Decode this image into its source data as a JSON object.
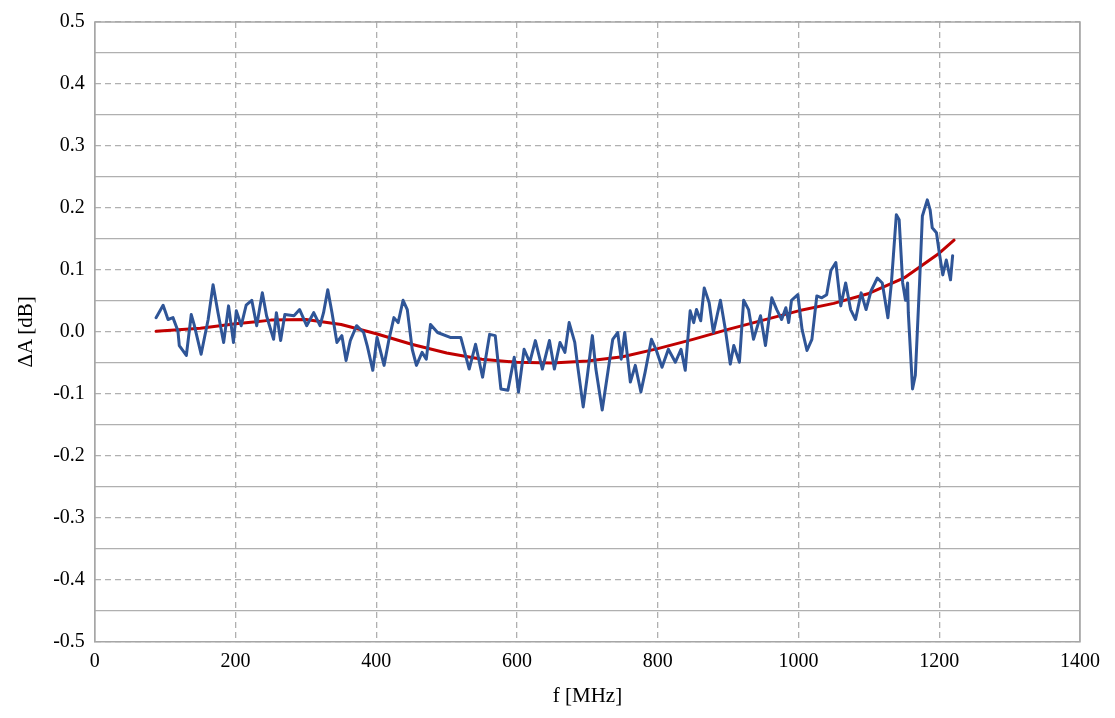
{
  "chart_data": {
    "type": "line",
    "xlabel": "f [MHz]",
    "ylabel": "ΔA [dB]",
    "xlim": [
      0,
      1400
    ],
    "xticks": [
      0,
      200,
      400,
      600,
      800,
      1000,
      1200,
      1400
    ],
    "ylim": [
      -0.5,
      0.5
    ],
    "yticks": [
      -0.5,
      {
        "value": -0.45,
        "label": null
      },
      -0.4,
      {
        "value": -0.35,
        "label": null
      },
      -0.3,
      {
        "value": -0.25,
        "label": null
      },
      -0.2,
      {
        "value": -0.15,
        "label": null
      },
      -0.1,
      {
        "value": -0.05,
        "label": null
      },
      {
        "value": 0,
        "label": "0.0"
      },
      {
        "value": 0.05,
        "label": null
      },
      0.1,
      {
        "value": 0.15,
        "label": null
      },
      0.2,
      {
        "value": 0.25,
        "label": null
      },
      0.3,
      {
        "value": 0.35,
        "label": null
      },
      0.4,
      {
        "value": 0.45,
        "label": null
      },
      0.5
    ],
    "grid": true,
    "legend": false,
    "marker": "none",
    "line_style": "solid",
    "series": [
      {
        "color": "#2f5597",
        "x": [
          87,
          97,
          104,
          111,
          118,
          120,
          130,
          137,
          141,
          151,
          161,
          168,
          175,
          183,
          190,
          197,
          201,
          208,
          215,
          223,
          230,
          238,
          244,
          254,
          258,
          264,
          270,
          283,
          291,
          301,
          311,
          320,
          325,
          331,
          337,
          344,
          351,
          357,
          363,
          372,
          382,
          387,
          395,
          401,
          411,
          418,
          425,
          431,
          438,
          444,
          451,
          457,
          465,
          471,
          477,
          487,
          505,
          520,
          532,
          541,
          551,
          561,
          569,
          577,
          587,
          596,
          602,
          610,
          618,
          626,
          636,
          646,
          653,
          661,
          668,
          674,
          682,
          686,
          694,
          700,
          707,
          712,
          721,
          729,
          736,
          743,
          748,
          753,
          761,
          768,
          776,
          782,
          791,
          798,
          806,
          815,
          825,
          833,
          839,
          846,
          851,
          855,
          861,
          866,
          873,
          879,
          889,
          896,
          903,
          908,
          916,
          922,
          929,
          936,
          946,
          953,
          962,
          969,
          976,
          982,
          986,
          990,
          999,
          1005,
          1012,
          1019,
          1026,
          1033,
          1040,
          1046,
          1053,
          1060,
          1067,
          1074,
          1081,
          1089,
          1096,
          1103,
          1112,
          1119,
          1127,
          1132,
          1139,
          1143,
          1148,
          1152,
          1155,
          1156,
          1162,
          1166,
          1172,
          1176,
          1183,
          1187,
          1190,
          1196,
          1200,
          1205,
          1210,
          1213,
          1216,
          1219
        ],
        "values": [
          0.023,
          0.043,
          0.02,
          0.023,
          0.002,
          -0.022,
          -0.038,
          0.028,
          0.012,
          -0.036,
          0.02,
          0.076,
          0.031,
          -0.017,
          0.042,
          -0.017,
          0.034,
          0.01,
          0.043,
          0.051,
          0.01,
          0.063,
          0.026,
          -0.012,
          0.031,
          -0.014,
          0.028,
          0.026,
          0.036,
          0.01,
          0.031,
          0.01,
          0.031,
          0.068,
          0.031,
          -0.017,
          -0.006,
          -0.046,
          -0.014,
          0.01,
          -0.001,
          -0.022,
          -0.062,
          -0.009,
          -0.054,
          -0.012,
          0.023,
          0.015,
          0.051,
          0.036,
          -0.028,
          -0.054,
          -0.033,
          -0.044,
          0.012,
          -0.001,
          -0.009,
          -0.009,
          -0.06,
          -0.02,
          -0.073,
          -0.004,
          -0.006,
          -0.092,
          -0.094,
          -0.041,
          -0.097,
          -0.028,
          -0.049,
          -0.014,
          -0.06,
          -0.014,
          -0.06,
          -0.017,
          -0.033,
          0.015,
          -0.017,
          -0.054,
          -0.121,
          -0.07,
          -0.006,
          -0.06,
          -0.126,
          -0.065,
          -0.012,
          -0.001,
          -0.044,
          -0.001,
          -0.081,
          -0.054,
          -0.097,
          -0.065,
          -0.012,
          -0.03,
          -0.057,
          -0.028,
          -0.049,
          -0.028,
          -0.062,
          0.034,
          0.015,
          0.036,
          0.018,
          0.071,
          0.047,
          -0.001,
          0.051,
          0.004,
          -0.052,
          -0.022,
          -0.049,
          0.051,
          0.036,
          -0.012,
          0.026,
          -0.022,
          0.055,
          0.036,
          0.02,
          0.039,
          0.015,
          0.051,
          0.06,
          0.004,
          -0.03,
          -0.012,
          0.058,
          0.055,
          0.06,
          0.099,
          0.112,
          0.042,
          0.079,
          0.036,
          0.02,
          0.063,
          0.036,
          0.066,
          0.087,
          0.079,
          0.023,
          0.079,
          0.189,
          0.181,
          0.079,
          0.051,
          0.079,
          0.031,
          -0.092,
          -0.07,
          0.079,
          0.187,
          0.213,
          0.197,
          0.168,
          0.16,
          0.128,
          0.092,
          0.116,
          0.1,
          0.084,
          0.123
        ]
      },
      {
        "color": "#c00000",
        "x": [
          87,
          150,
          200,
          250,
          300,
          350,
          400,
          450,
          500,
          550,
          600,
          650,
          700,
          750,
          800,
          850,
          900,
          950,
          1000,
          1050,
          1100,
          1150,
          1200,
          1221
        ],
        "values": [
          0.001,
          0.006,
          0.013,
          0.019,
          0.02,
          0.012,
          -0.003,
          -0.02,
          -0.034,
          -0.044,
          -0.049,
          -0.05,
          -0.047,
          -0.04,
          -0.027,
          -0.012,
          0.004,
          0.019,
          0.034,
          0.046,
          0.062,
          0.087,
          0.127,
          0.148
        ]
      }
    ]
  }
}
